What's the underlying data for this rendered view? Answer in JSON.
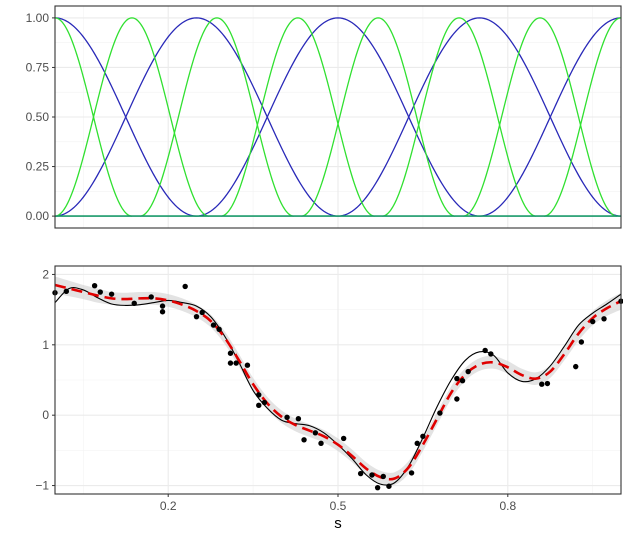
{
  "chart_data": [
    {
      "type": "line",
      "title": "",
      "xlabel": "",
      "ylabel": "",
      "xlim": [
        0,
        1
      ],
      "ylim": [
        -0.06,
        1.06
      ],
      "grid": true,
      "y_ticks": [
        0.0,
        0.25,
        0.5,
        0.75,
        1.0
      ],
      "y_tick_labels": [
        "0.00",
        "0.25",
        "0.50",
        "0.75",
        "1.00"
      ],
      "x_tick_labels_shown": false,
      "basis_curves": [
        {
          "family": "wide",
          "color": "#2929b8",
          "peak_x": 0.0,
          "half_width": 0.25
        },
        {
          "family": "wide",
          "color": "#2929b8",
          "peak_x": 0.25,
          "half_width": 0.25
        },
        {
          "family": "wide",
          "color": "#2929b8",
          "peak_x": 0.5,
          "half_width": 0.25
        },
        {
          "family": "wide",
          "color": "#2929b8",
          "peak_x": 0.75,
          "half_width": 0.25
        },
        {
          "family": "wide",
          "color": "#2929b8",
          "peak_x": 1.0,
          "half_width": 0.25
        },
        {
          "family": "narrow",
          "color": "#30e030",
          "peak_x": 0.0,
          "half_width": 0.136
        },
        {
          "family": "narrow",
          "color": "#30e030",
          "peak_x": 0.136,
          "half_width": 0.136
        },
        {
          "family": "narrow",
          "color": "#30e030",
          "peak_x": 0.286,
          "half_width": 0.136
        },
        {
          "family": "narrow",
          "color": "#30e030",
          "peak_x": 0.429,
          "half_width": 0.136
        },
        {
          "family": "narrow",
          "color": "#30e030",
          "peak_x": 0.571,
          "half_width": 0.136
        },
        {
          "family": "narrow",
          "color": "#30e030",
          "peak_x": 0.714,
          "half_width": 0.136
        },
        {
          "family": "narrow",
          "color": "#30e030",
          "peak_x": 0.857,
          "half_width": 0.136
        },
        {
          "family": "narrow",
          "color": "#30e030",
          "peak_x": 1.0,
          "half_width": 0.136
        }
      ],
      "zero_line_color": "#1a9a6a"
    },
    {
      "type": "line",
      "title": "",
      "xlabel": "s",
      "ylabel": "",
      "xlim": [
        0,
        1
      ],
      "ylim": [
        -1.12,
        2.12
      ],
      "grid": true,
      "x_ticks": [
        0.2,
        0.5,
        0.8
      ],
      "x_tick_labels": [
        "0.2",
        "0.5",
        "0.8"
      ],
      "y_ticks": [
        -1,
        0,
        1,
        2
      ],
      "y_tick_labels": [
        "-1",
        "0",
        "1",
        "2"
      ],
      "y_tick_minus": "−",
      "true_curve_color": "#000000",
      "fit_curve_color": "#e00000",
      "band_color": "#cccccc",
      "x_grid": [
        0.0,
        0.025,
        0.05,
        0.075,
        0.1,
        0.125,
        0.15,
        0.175,
        0.2,
        0.225,
        0.25,
        0.275,
        0.3,
        0.325,
        0.35,
        0.375,
        0.4,
        0.425,
        0.45,
        0.475,
        0.5,
        0.525,
        0.55,
        0.575,
        0.6,
        0.625,
        0.65,
        0.675,
        0.7,
        0.725,
        0.75,
        0.775,
        0.8,
        0.825,
        0.85,
        0.875,
        0.9,
        0.925,
        0.95,
        0.975,
        1.0
      ],
      "series": [
        {
          "values": [
            1.6,
            1.8,
            1.78,
            1.67,
            1.58,
            1.56,
            1.57,
            1.6,
            1.63,
            1.6,
            1.55,
            1.4,
            1.12,
            0.75,
            0.35,
            0.1,
            -0.07,
            -0.12,
            -0.15,
            -0.25,
            -0.42,
            -0.62,
            -0.85,
            -0.98,
            -0.96,
            -0.72,
            -0.32,
            0.12,
            0.5,
            0.78,
            0.9,
            0.85,
            0.6,
            0.48,
            0.52,
            0.7,
            0.98,
            1.28,
            1.45,
            1.58,
            1.72
          ]
        },
        {
          "values": [
            1.85,
            1.8,
            1.75,
            1.7,
            1.66,
            1.65,
            1.66,
            1.66,
            1.63,
            1.57,
            1.48,
            1.34,
            1.1,
            0.78,
            0.44,
            0.17,
            -0.02,
            -0.14,
            -0.22,
            -0.3,
            -0.42,
            -0.58,
            -0.76,
            -0.88,
            -0.9,
            -0.74,
            -0.42,
            -0.05,
            0.32,
            0.58,
            0.72,
            0.75,
            0.68,
            0.57,
            0.52,
            0.62,
            0.87,
            1.16,
            1.38,
            1.52,
            1.62
          ]
        },
        {
          "values": [
            0.12,
            0.11,
            0.1,
            0.1,
            0.09,
            0.09,
            0.09,
            0.09,
            0.09,
            0.09,
            0.09,
            0.09,
            0.09,
            0.09,
            0.09,
            0.09,
            0.09,
            0.09,
            0.09,
            0.09,
            0.09,
            0.09,
            0.09,
            0.09,
            0.09,
            0.09,
            0.09,
            0.09,
            0.09,
            0.09,
            0.09,
            0.09,
            0.09,
            0.09,
            0.09,
            0.09,
            0.09,
            0.1,
            0.1,
            0.11,
            0.12
          ]
        }
      ],
      "points": [
        {
          "x": 0.0,
          "y": 1.74
        },
        {
          "x": 0.02,
          "y": 1.76
        },
        {
          "x": 0.07,
          "y": 1.84
        },
        {
          "x": 0.08,
          "y": 1.75
        },
        {
          "x": 0.1,
          "y": 1.72
        },
        {
          "x": 0.14,
          "y": 1.59
        },
        {
          "x": 0.17,
          "y": 1.68
        },
        {
          "x": 0.19,
          "y": 1.55
        },
        {
          "x": 0.19,
          "y": 1.47
        },
        {
          "x": 0.23,
          "y": 1.83
        },
        {
          "x": 0.25,
          "y": 1.4
        },
        {
          "x": 0.26,
          "y": 1.46
        },
        {
          "x": 0.28,
          "y": 1.28
        },
        {
          "x": 0.29,
          "y": 1.22
        },
        {
          "x": 0.31,
          "y": 0.88
        },
        {
          "x": 0.31,
          "y": 0.74
        },
        {
          "x": 0.32,
          "y": 0.74
        },
        {
          "x": 0.34,
          "y": 0.71
        },
        {
          "x": 0.36,
          "y": 0.29
        },
        {
          "x": 0.36,
          "y": 0.14
        },
        {
          "x": 0.37,
          "y": 0.18
        },
        {
          "x": 0.41,
          "y": -0.03
        },
        {
          "x": 0.43,
          "y": -0.05
        },
        {
          "x": 0.44,
          "y": -0.35
        },
        {
          "x": 0.46,
          "y": -0.25
        },
        {
          "x": 0.47,
          "y": -0.4
        },
        {
          "x": 0.51,
          "y": -0.33
        },
        {
          "x": 0.54,
          "y": -0.83
        },
        {
          "x": 0.56,
          "y": -0.85
        },
        {
          "x": 0.57,
          "y": -1.03
        },
        {
          "x": 0.58,
          "y": -0.87
        },
        {
          "x": 0.59,
          "y": -1.01
        },
        {
          "x": 0.63,
          "y": -0.82
        },
        {
          "x": 0.64,
          "y": -0.4
        },
        {
          "x": 0.65,
          "y": -0.3
        },
        {
          "x": 0.68,
          "y": 0.03
        },
        {
          "x": 0.71,
          "y": 0.23
        },
        {
          "x": 0.71,
          "y": 0.52
        },
        {
          "x": 0.72,
          "y": 0.49
        },
        {
          "x": 0.73,
          "y": 0.62
        },
        {
          "x": 0.76,
          "y": 0.92
        },
        {
          "x": 0.77,
          "y": 0.87
        },
        {
          "x": 0.86,
          "y": 0.44
        },
        {
          "x": 0.87,
          "y": 0.45
        },
        {
          "x": 0.92,
          "y": 0.69
        },
        {
          "x": 0.93,
          "y": 1.04
        },
        {
          "x": 0.95,
          "y": 1.33
        },
        {
          "x": 0.97,
          "y": 1.37
        },
        {
          "x": 1.0,
          "y": 1.62
        }
      ]
    }
  ]
}
